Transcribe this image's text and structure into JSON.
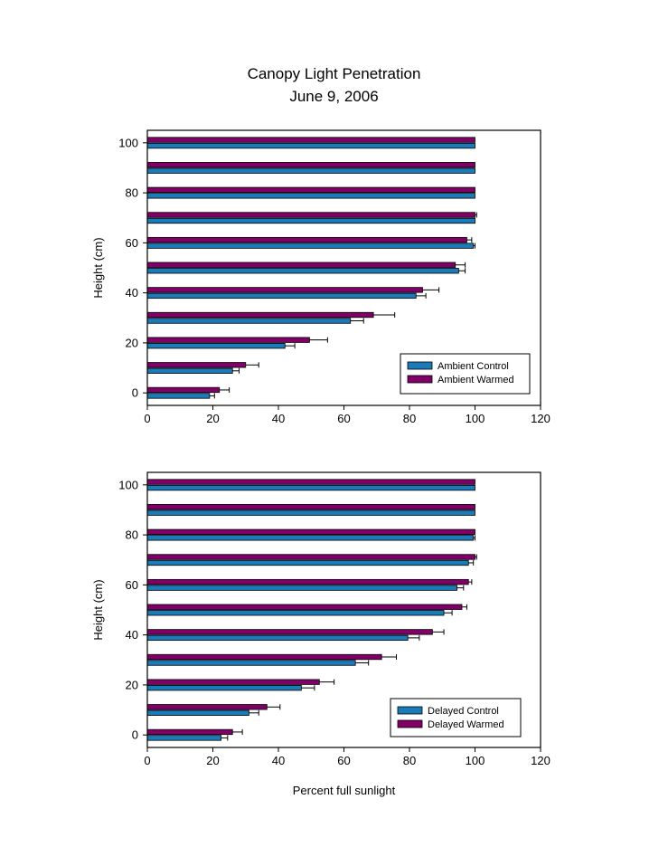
{
  "title": "Canopy Light Penetration",
  "subtitle": "June 9, 2006",
  "chart_data": [
    {
      "type": "bar",
      "orientation": "horizontal",
      "title": "Canopy Light Penetration",
      "subtitle": "June 9, 2006",
      "ylabel": "Height (cm)",
      "xlabel": "",
      "xlim": [
        0,
        120
      ],
      "xticks": [
        "0",
        "20",
        "40",
        "60",
        "80",
        "100",
        "120"
      ],
      "ylim": [
        -5,
        105
      ],
      "yticks": [
        "0",
        "20",
        "40",
        "60",
        "80",
        "100"
      ],
      "grid": false,
      "legend_position": "bottom-right",
      "categories": [
        0,
        10,
        20,
        30,
        40,
        50,
        60,
        70,
        80,
        90,
        100
      ],
      "series": [
        {
          "name": "Ambient Control",
          "color": "#1b7ab8",
          "values": [
            19,
            26,
            42,
            62,
            82,
            95,
            99.5,
            100,
            100,
            100,
            100
          ],
          "errors": [
            1.5,
            2,
            3,
            4,
            3,
            2,
            0.5,
            0,
            0,
            0,
            0
          ]
        },
        {
          "name": "Ambient Warmed",
          "color": "#800068",
          "values": [
            22,
            30,
            49.5,
            69,
            84,
            94,
            97.5,
            100,
            100,
            100,
            100
          ],
          "errors": [
            3,
            4,
            5.5,
            6.5,
            5,
            3,
            1.5,
            0.5,
            0,
            0,
            0
          ]
        }
      ]
    },
    {
      "type": "bar",
      "orientation": "horizontal",
      "title": "",
      "ylabel": "Height (cm)",
      "xlabel": "Percent full sunlight",
      "xlim": [
        0,
        120
      ],
      "xticks": [
        "0",
        "20",
        "40",
        "60",
        "80",
        "100",
        "120"
      ],
      "ylim": [
        -5,
        105
      ],
      "yticks": [
        "0",
        "20",
        "40",
        "60",
        "80",
        "100"
      ],
      "grid": false,
      "legend_position": "bottom-right",
      "categories": [
        0,
        10,
        20,
        30,
        40,
        50,
        60,
        70,
        80,
        90,
        100
      ],
      "series": [
        {
          "name": "Delayed Control",
          "color": "#1b7ab8",
          "values": [
            22.5,
            31,
            47,
            63.5,
            79.5,
            90.5,
            94.5,
            98,
            99.5,
            100,
            100
          ],
          "errors": [
            2,
            3,
            4,
            4,
            3.5,
            2.5,
            2,
            1.5,
            0.5,
            0,
            0
          ]
        },
        {
          "name": "Delayed Warmed",
          "color": "#800068",
          "values": [
            26,
            36.5,
            52.5,
            71.5,
            87,
            96,
            98,
            100,
            100,
            100,
            100
          ],
          "errors": [
            3,
            4,
            4.5,
            4.5,
            3.5,
            1.5,
            1,
            0.5,
            0,
            0,
            0
          ]
        }
      ]
    }
  ]
}
